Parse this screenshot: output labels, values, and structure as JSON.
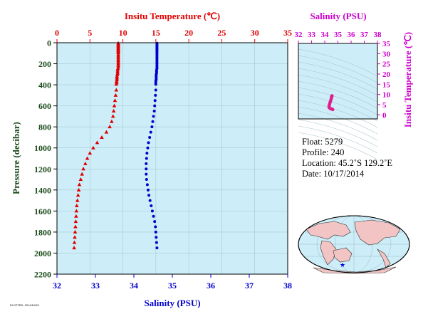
{
  "chart_data": [
    {
      "type": "scatter",
      "title": "",
      "top_axis_label": "Insitu Temperature (℃)",
      "xlabel": "Salinity (PSU)",
      "ylabel": "Pressure (decibar)",
      "ylim": [
        0,
        2200
      ],
      "y_inverted": true,
      "yticks": [
        "0",
        "200",
        "400",
        "600",
        "800",
        "1000",
        "1200",
        "1400",
        "1600",
        "1800",
        "2000",
        "2200"
      ],
      "temp_lim": [
        0,
        35
      ],
      "temp_ticks": [
        "0",
        "5",
        "10",
        "15",
        "20",
        "25",
        "30",
        "35"
      ],
      "sal_lim": [
        32,
        38
      ],
      "sal_ticks": [
        "32",
        "33",
        "34",
        "35",
        "36",
        "37",
        "38"
      ],
      "grid": true,
      "colors": {
        "temperature": "#e00000",
        "salinity": "#0000cc",
        "plot_bg": "#cdeef8"
      },
      "series": [
        {
          "quantity": "temperature",
          "marker": "triangle",
          "points": [
            [
              9.3,
              5
            ],
            [
              9.3,
              15
            ],
            [
              9.3,
              25
            ],
            [
              9.3,
              35
            ],
            [
              9.3,
              45
            ],
            [
              9.3,
              55
            ],
            [
              9.3,
              65
            ],
            [
              9.3,
              75
            ],
            [
              9.3,
              85
            ],
            [
              9.3,
              95
            ],
            [
              9.3,
              110
            ],
            [
              9.3,
              125
            ],
            [
              9.3,
              140
            ],
            [
              9.3,
              155
            ],
            [
              9.3,
              170
            ],
            [
              9.3,
              185
            ],
            [
              9.3,
              200
            ],
            [
              9.3,
              215
            ],
            [
              9.3,
              230
            ],
            [
              9.25,
              245
            ],
            [
              9.2,
              260
            ],
            [
              9.2,
              275
            ],
            [
              9.2,
              290
            ],
            [
              9.15,
              305
            ],
            [
              9.1,
              320
            ],
            [
              9.1,
              335
            ],
            [
              9.1,
              350
            ],
            [
              9.05,
              365
            ],
            [
              9.05,
              380
            ],
            [
              9.0,
              395
            ],
            [
              9.0,
              450
            ],
            [
              8.9,
              500
            ],
            [
              8.8,
              550
            ],
            [
              8.7,
              600
            ],
            [
              8.6,
              650
            ],
            [
              8.5,
              700
            ],
            [
              8.3,
              750
            ],
            [
              8.0,
              800
            ],
            [
              7.5,
              850
            ],
            [
              6.8,
              900
            ],
            [
              6.1,
              950
            ],
            [
              5.5,
              1000
            ],
            [
              5.0,
              1050
            ],
            [
              4.6,
              1100
            ],
            [
              4.3,
              1150
            ],
            [
              4.0,
              1200
            ],
            [
              3.8,
              1250
            ],
            [
              3.6,
              1300
            ],
            [
              3.4,
              1350
            ],
            [
              3.3,
              1400
            ],
            [
              3.2,
              1450
            ],
            [
              3.1,
              1500
            ],
            [
              3.0,
              1550
            ],
            [
              2.95,
              1600
            ],
            [
              2.9,
              1650
            ],
            [
              2.85,
              1700
            ],
            [
              2.8,
              1750
            ],
            [
              2.75,
              1800
            ],
            [
              2.7,
              1850
            ],
            [
              2.65,
              1900
            ],
            [
              2.6,
              1950
            ]
          ]
        },
        {
          "quantity": "salinity",
          "marker": "circle",
          "points": [
            [
              34.6,
              5
            ],
            [
              34.6,
              15
            ],
            [
              34.6,
              25
            ],
            [
              34.6,
              35
            ],
            [
              34.6,
              45
            ],
            [
              34.6,
              55
            ],
            [
              34.6,
              65
            ],
            [
              34.6,
              75
            ],
            [
              34.6,
              85
            ],
            [
              34.6,
              95
            ],
            [
              34.6,
              110
            ],
            [
              34.6,
              125
            ],
            [
              34.6,
              140
            ],
            [
              34.6,
              155
            ],
            [
              34.6,
              170
            ],
            [
              34.6,
              185
            ],
            [
              34.6,
              200
            ],
            [
              34.6,
              215
            ],
            [
              34.6,
              230
            ],
            [
              34.6,
              245
            ],
            [
              34.59,
              260
            ],
            [
              34.59,
              275
            ],
            [
              34.59,
              290
            ],
            [
              34.58,
              305
            ],
            [
              34.58,
              320
            ],
            [
              34.58,
              335
            ],
            [
              34.58,
              350
            ],
            [
              34.57,
              365
            ],
            [
              34.57,
              380
            ],
            [
              34.57,
              395
            ],
            [
              34.57,
              450
            ],
            [
              34.56,
              500
            ],
            [
              34.55,
              550
            ],
            [
              34.54,
              600
            ],
            [
              34.53,
              650
            ],
            [
              34.51,
              700
            ],
            [
              34.49,
              750
            ],
            [
              34.47,
              800
            ],
            [
              34.44,
              850
            ],
            [
              34.41,
              900
            ],
            [
              34.38,
              950
            ],
            [
              34.36,
              1000
            ],
            [
              34.34,
              1050
            ],
            [
              34.33,
              1100
            ],
            [
              34.32,
              1150
            ],
            [
              34.32,
              1200
            ],
            [
              34.32,
              1250
            ],
            [
              34.33,
              1300
            ],
            [
              34.35,
              1350
            ],
            [
              34.37,
              1400
            ],
            [
              34.39,
              1450
            ],
            [
              34.42,
              1500
            ],
            [
              34.45,
              1550
            ],
            [
              34.48,
              1600
            ],
            [
              34.51,
              1650
            ],
            [
              34.54,
              1700
            ],
            [
              34.56,
              1750
            ],
            [
              34.57,
              1800
            ],
            [
              34.58,
              1850
            ],
            [
              34.59,
              1900
            ],
            [
              34.6,
              1950
            ]
          ]
        }
      ]
    },
    {
      "type": "scatter",
      "title": "Salinity (PSU)",
      "ylabel": "Insitu Temperature (℃)",
      "xlim": [
        32,
        38
      ],
      "xticks": [
        "32",
        "33",
        "34",
        "35",
        "36",
        "37",
        "38"
      ],
      "ylim": [
        -2,
        35
      ],
      "yticks": [
        "0",
        "5",
        "10",
        "15",
        "20",
        "25",
        "30",
        "35"
      ],
      "colors": {
        "points": "#e0208a",
        "contours": "#a8c4cc",
        "bg": "#cdeef8",
        "axis": "#cc00cc"
      },
      "points": [
        [
          34.55,
          9.3
        ],
        [
          34.52,
          8.8
        ],
        [
          34.5,
          8.0
        ],
        [
          34.45,
          7.0
        ],
        [
          34.4,
          6.0
        ],
        [
          34.36,
          5.0
        ],
        [
          34.33,
          4.2
        ],
        [
          34.34,
          3.6
        ],
        [
          34.4,
          3.2
        ],
        [
          34.5,
          2.9
        ],
        [
          34.6,
          2.6
        ]
      ]
    }
  ],
  "info": {
    "float": "Float:  5279",
    "profile": "Profile:  240",
    "location": "Location:  45.2˚S  129.2˚E",
    "date": "Date:  10/17/2014"
  },
  "stamp": "PLOTTED: 2014/10/20"
}
